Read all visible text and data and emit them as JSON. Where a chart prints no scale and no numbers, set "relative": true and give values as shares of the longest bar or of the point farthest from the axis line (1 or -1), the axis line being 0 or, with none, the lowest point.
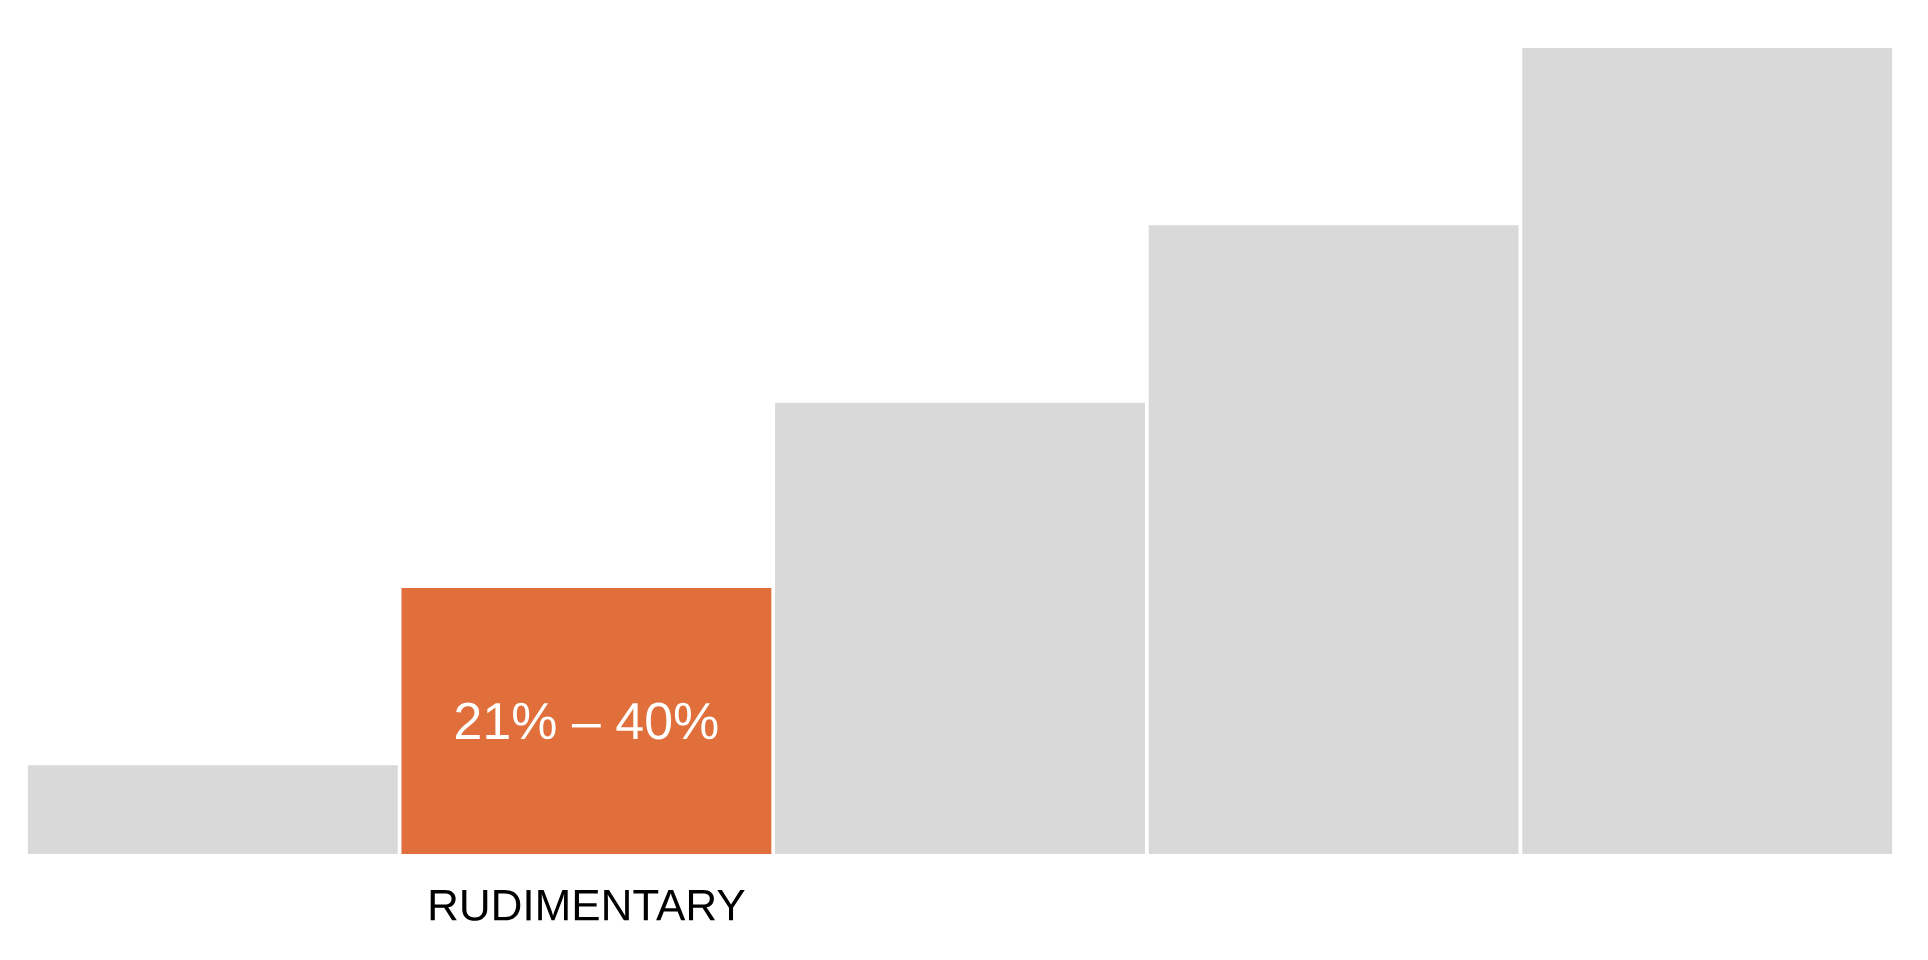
{
  "chart_data": {
    "type": "bar",
    "categories": [
      null,
      "RUDIMENTARY",
      null,
      null,
      null
    ],
    "values": [
      0.11,
      0.33,
      0.56,
      0.78,
      1
    ],
    "colors": [
      "#d9d9d9",
      "#e06f3b",
      "#d9d9d9",
      "#d9d9d9",
      "#d9d9d9"
    ],
    "relative": true,
    "annotations": [
      "21% – 40%"
    ]
  }
}
